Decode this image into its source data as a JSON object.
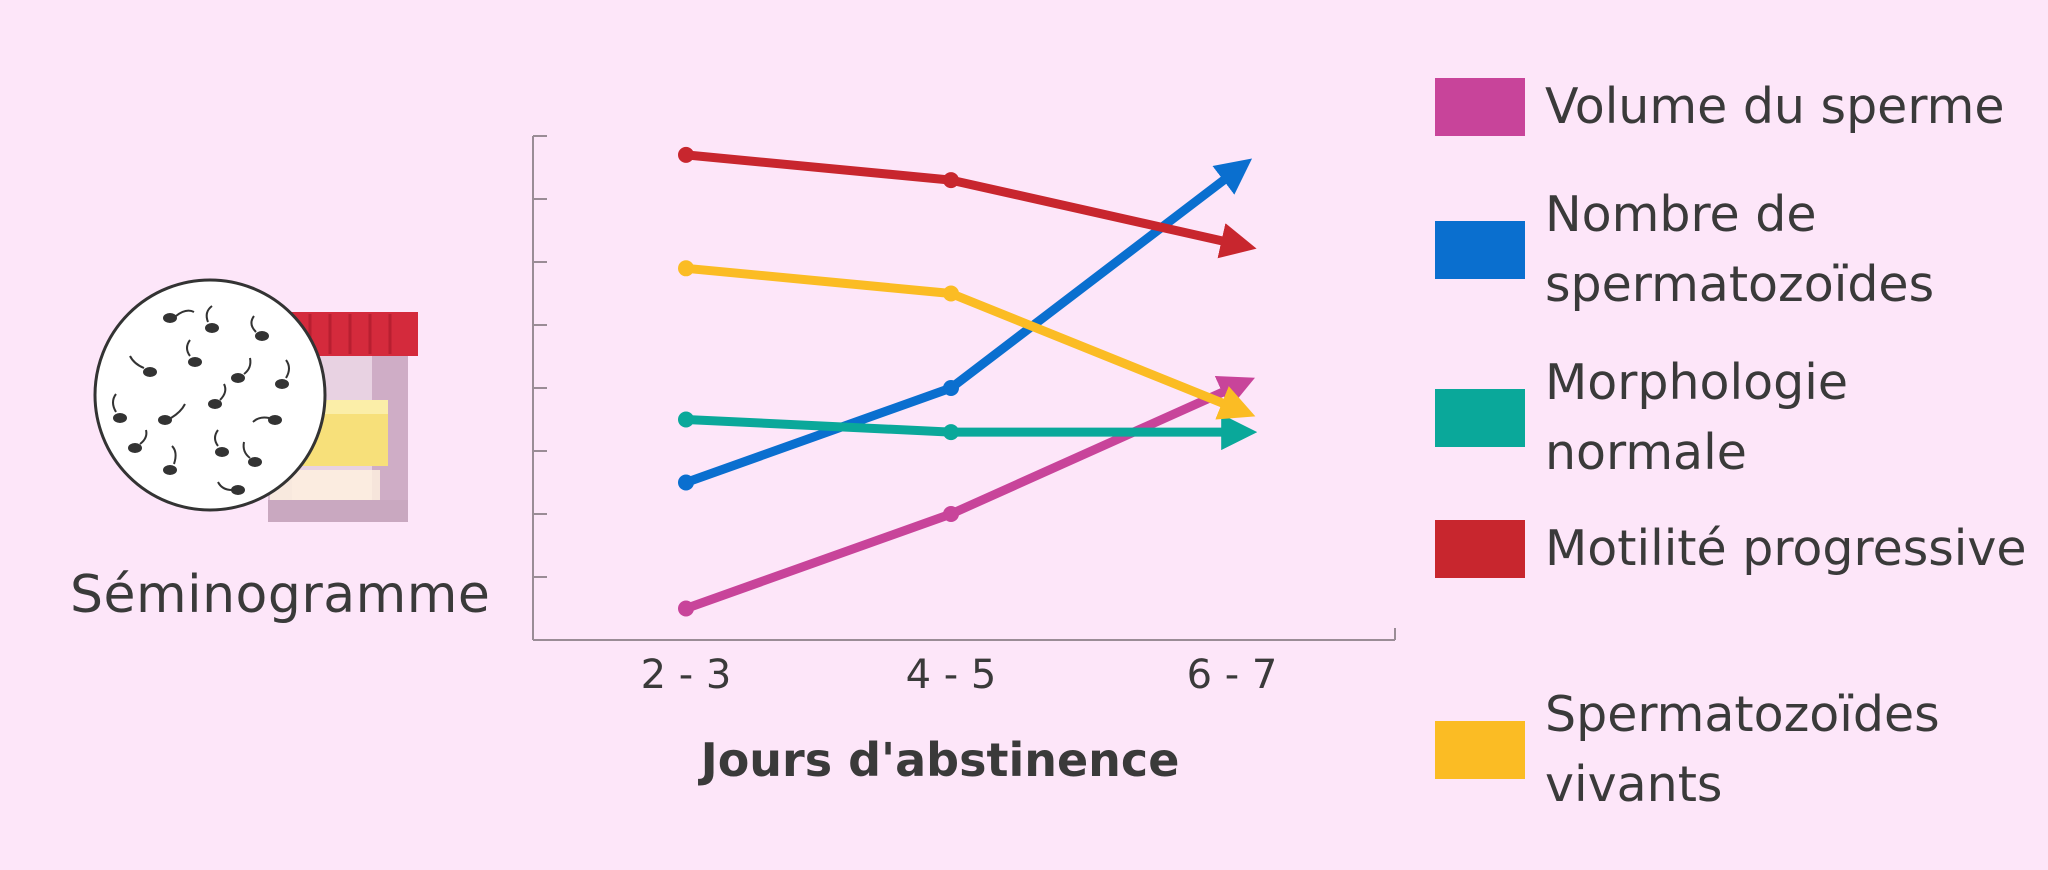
{
  "illustration": {
    "label": "Séminogramme",
    "icon": "semen-sample-microscope-icon",
    "colors": {
      "cap": "#d42a3c",
      "jar": "#e9cfe0",
      "label": "#f7e07a",
      "sperm": "#333333"
    }
  },
  "chart_data": {
    "type": "line",
    "title": "",
    "xlabel": "Jours d'abstinence",
    "ylabel": "",
    "categories": [
      "2 - 3",
      "4 - 5",
      "6 - 7"
    ],
    "ylim": [
      0,
      8
    ],
    "grid": false,
    "yticks_labeled": false,
    "legend_placement": "right",
    "series": [
      {
        "name": "Volume du sperme",
        "color": "#c8449a",
        "values": [
          0.5,
          2.0,
          4.0
        ]
      },
      {
        "name": "Nombre de spermatozoïdes",
        "color": "#0a6fcf",
        "values": [
          2.5,
          4.0,
          7.4
        ]
      },
      {
        "name": "Morphologie normale",
        "color": "#0aa89a",
        "values": [
          3.5,
          3.3,
          3.3
        ]
      },
      {
        "name": "Motilité progressive",
        "color": "#c8262e",
        "values": [
          7.7,
          7.3,
          6.3
        ]
      },
      {
        "name": "Spermatozoïdes vivants",
        "color": "#fbbc24",
        "values": [
          5.9,
          5.5,
          3.7
        ]
      }
    ]
  }
}
